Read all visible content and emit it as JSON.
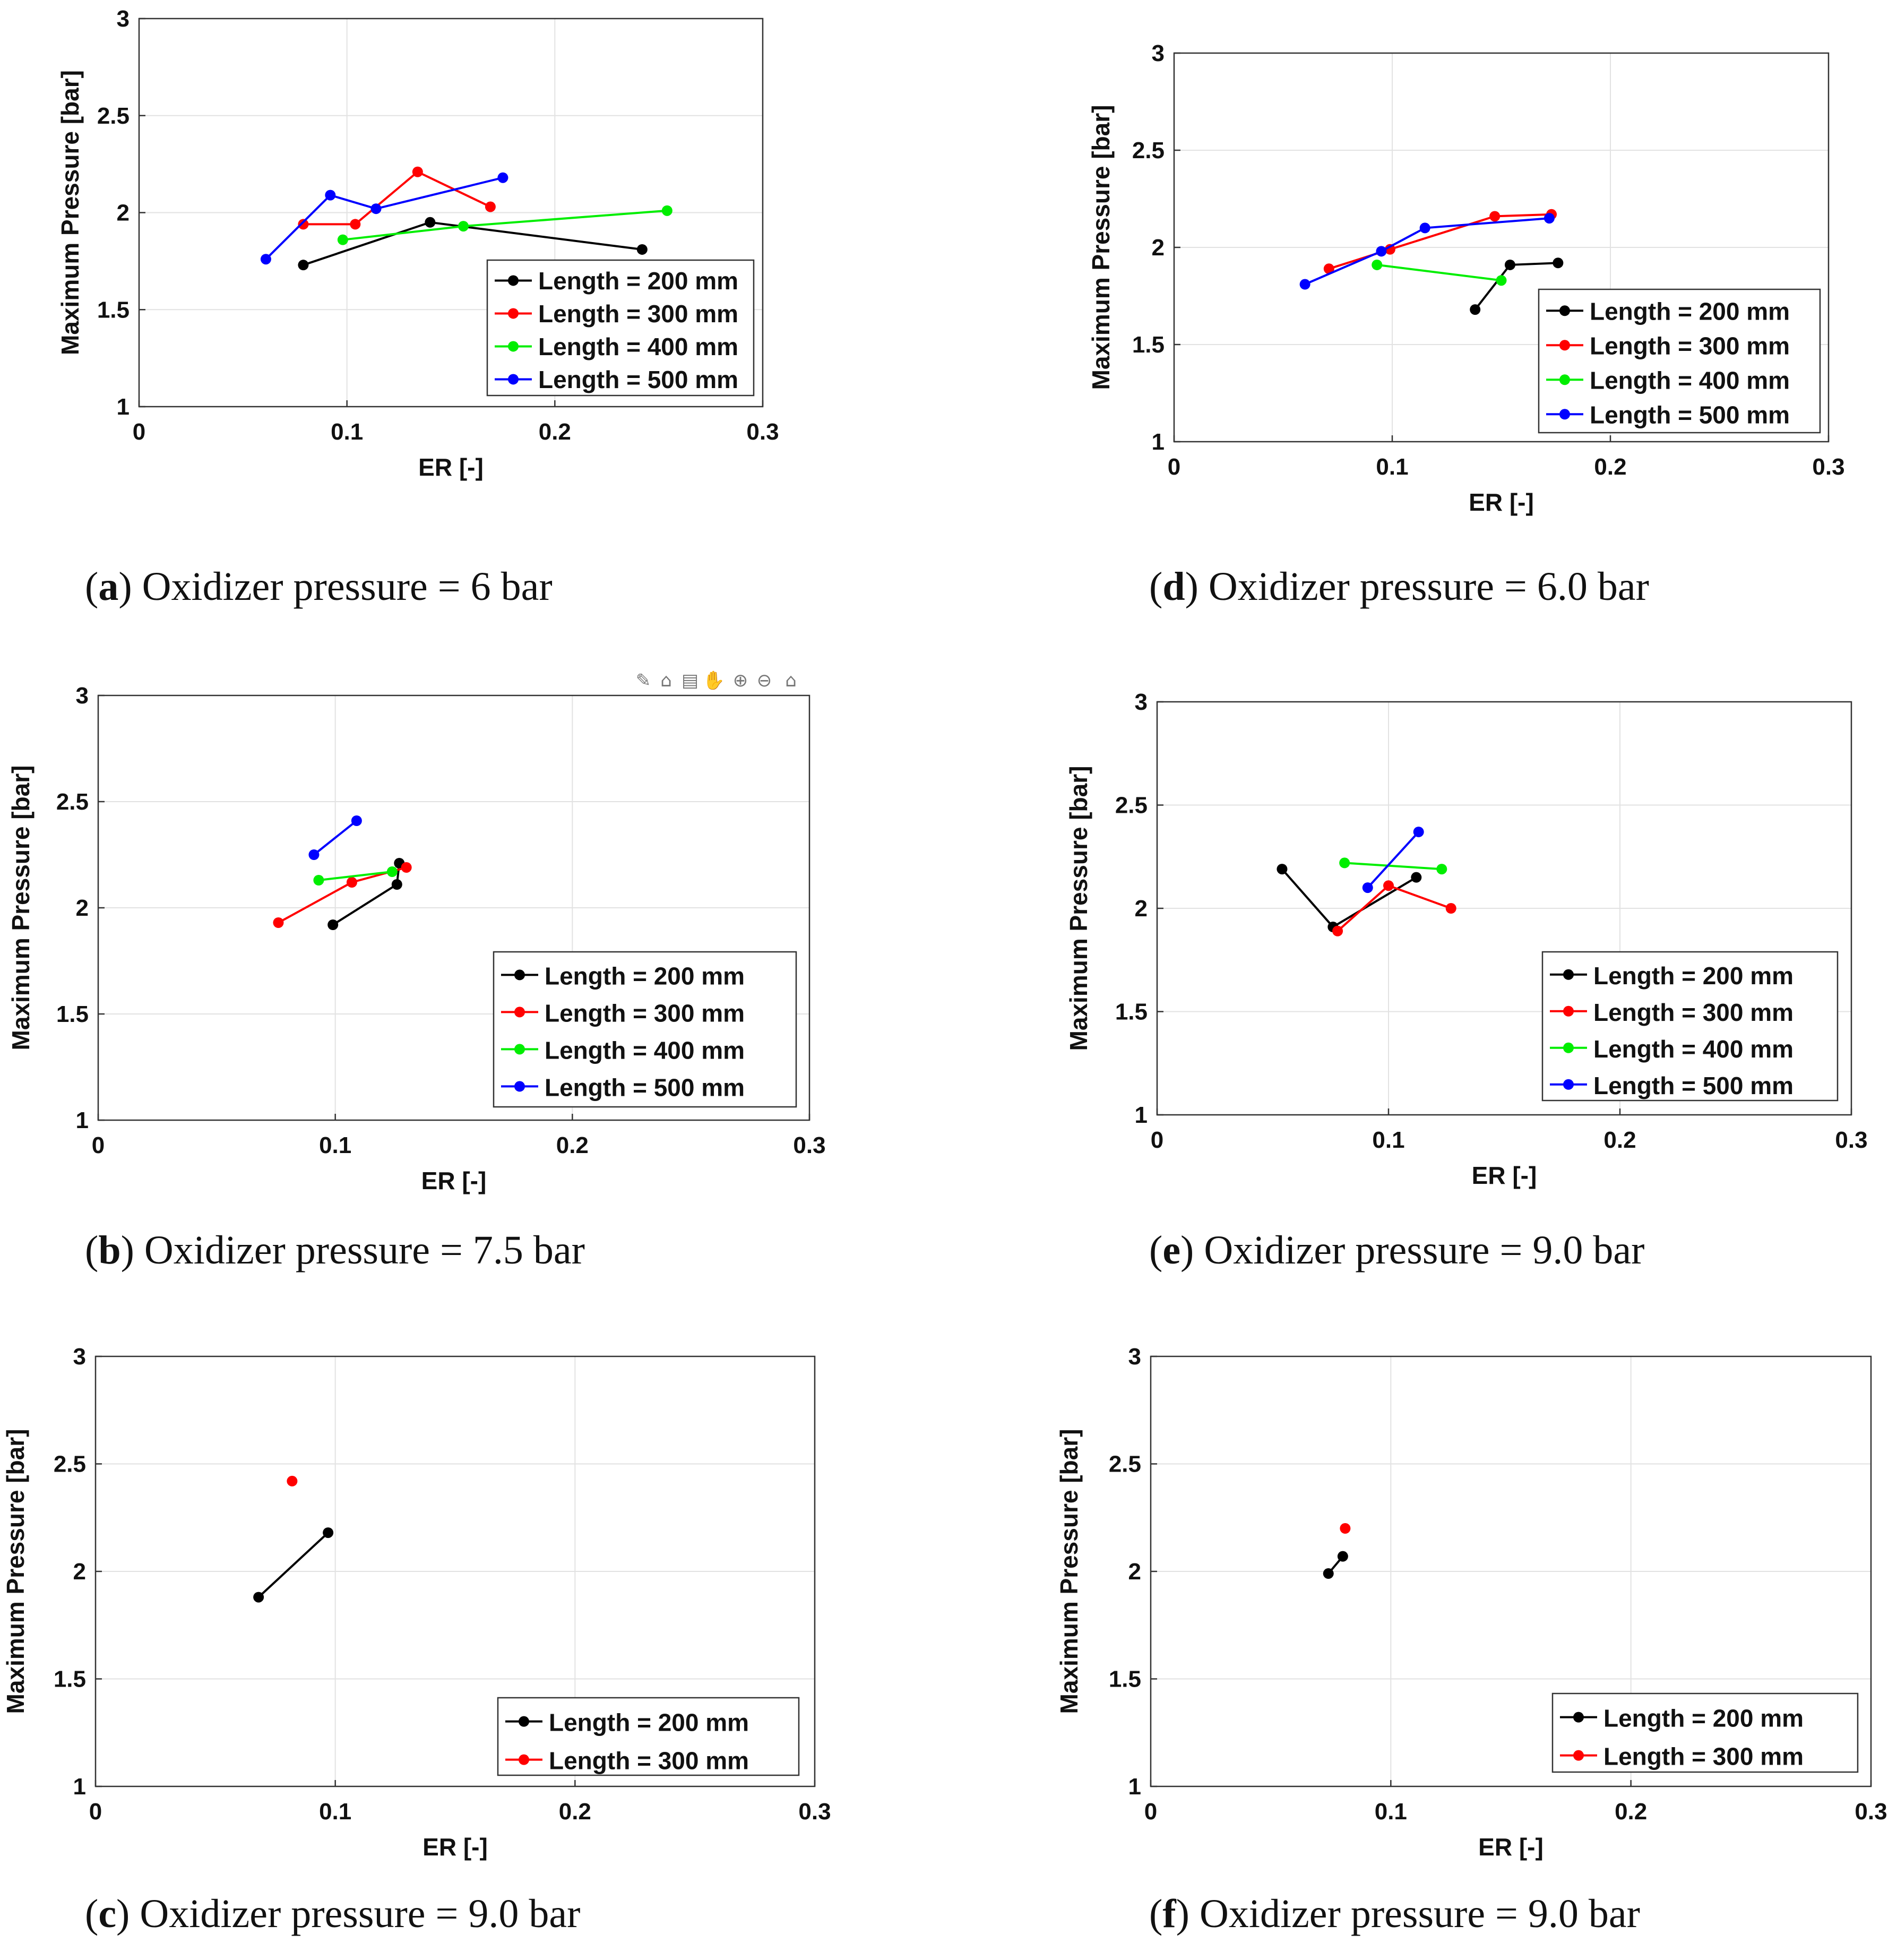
{
  "figure": {
    "toolbar_icons": [
      "brush-icon",
      "insert-legend-icon",
      "data-cursor-icon",
      "pan-hand-icon",
      "zoom-in-icon",
      "zoom-out-icon",
      "home-icon"
    ]
  },
  "chart_data": [
    {
      "id": "a",
      "type": "line",
      "caption_letter": "a",
      "caption_text": " Oxidizer pressure = 6 bar",
      "xlabel": "ER [-]",
      "ylabel": "Maximum Pressure [bar]",
      "xlim": [
        0,
        0.3
      ],
      "ylim": [
        1,
        3
      ],
      "xticks": [
        "0",
        "0.1",
        "0.2",
        "0.3"
      ],
      "yticks": [
        "1",
        "1.5",
        "2",
        "2.5",
        "3"
      ],
      "grid": true,
      "legend_placement": "bottom-right",
      "series": [
        {
          "name": "Length = 200 mm",
          "color": "#000000",
          "points": [
            [
              0.079,
              1.73
            ],
            [
              0.14,
              1.95
            ],
            [
              0.242,
              1.81
            ]
          ]
        },
        {
          "name": "Length = 300 mm",
          "color": "#ff0000",
          "points": [
            [
              0.079,
              1.94
            ],
            [
              0.104,
              1.94
            ],
            [
              0.134,
              2.21
            ],
            [
              0.169,
              2.03
            ]
          ]
        },
        {
          "name": "Length = 400 mm",
          "color": "#00ee00",
          "points": [
            [
              0.098,
              1.86
            ],
            [
              0.156,
              1.93
            ],
            [
              0.254,
              2.01
            ]
          ]
        },
        {
          "name": "Length = 500 mm",
          "color": "#0000ff",
          "points": [
            [
              0.061,
              1.76
            ],
            [
              0.092,
              2.09
            ],
            [
              0.114,
              2.02
            ],
            [
              0.175,
              2.18
            ]
          ]
        }
      ]
    },
    {
      "id": "b",
      "type": "line",
      "caption_letter": "b",
      "caption_text": " Oxidizer pressure = 7.5 bar",
      "xlabel": "ER [-]",
      "ylabel": "Maximum Pressure [bar]",
      "xlim": [
        0,
        0.3
      ],
      "ylim": [
        1,
        3
      ],
      "xticks": [
        "0",
        "0.1",
        "0.2",
        "0.3"
      ],
      "yticks": [
        "1",
        "1.5",
        "2",
        "2.5",
        "3"
      ],
      "grid": true,
      "legend_placement": "bottom-right",
      "series": [
        {
          "name": "Length = 200 mm",
          "color": "#000000",
          "points": [
            [
              0.099,
              1.92
            ],
            [
              0.126,
              2.11
            ],
            [
              0.127,
              2.21
            ]
          ]
        },
        {
          "name": "Length = 300 mm",
          "color": "#ff0000",
          "points": [
            [
              0.076,
              1.93
            ],
            [
              0.107,
              2.12
            ],
            [
              0.13,
              2.19
            ]
          ]
        },
        {
          "name": "Length = 400 mm",
          "color": "#00ee00",
          "points": [
            [
              0.093,
              2.13
            ],
            [
              0.124,
              2.17
            ]
          ]
        },
        {
          "name": "Length = 500 mm",
          "color": "#0000ff",
          "points": [
            [
              0.091,
              2.25
            ],
            [
              0.109,
              2.41
            ]
          ]
        }
      ]
    },
    {
      "id": "c",
      "type": "line",
      "caption_letter": "c",
      "caption_text": " Oxidizer pressure = 9.0 bar",
      "xlabel": "ER [-]",
      "ylabel": "Maximum Pressure [bar]",
      "xlim": [
        0,
        0.3
      ],
      "ylim": [
        1,
        3
      ],
      "xticks": [
        "0",
        "0.1",
        "0.2",
        "0.3"
      ],
      "yticks": [
        "1",
        "1.5",
        "2",
        "2.5",
        "3"
      ],
      "grid": true,
      "legend_placement": "bottom-right",
      "series": [
        {
          "name": "Length = 200 mm",
          "color": "#000000",
          "points": [
            [
              0.068,
              1.88
            ],
            [
              0.097,
              2.18
            ]
          ]
        },
        {
          "name": "Length = 300 mm",
          "color": "#ff0000",
          "points": [
            [
              0.082,
              2.42
            ]
          ]
        }
      ]
    },
    {
      "id": "d",
      "type": "line",
      "caption_letter": "d",
      "caption_text": " Oxidizer pressure = 6.0 bar",
      "xlabel": "ER [-]",
      "ylabel": "Maximum Pressure [bar]",
      "xlim": [
        0,
        0.3
      ],
      "ylim": [
        1,
        3
      ],
      "xticks": [
        "0",
        "0.1",
        "0.2",
        "0.3"
      ],
      "yticks": [
        "1",
        "1.5",
        "2",
        "2.5",
        "3"
      ],
      "grid": true,
      "legend_placement": "bottom-right",
      "series": [
        {
          "name": "Length = 200 mm",
          "color": "#000000",
          "points": [
            [
              0.138,
              1.68
            ],
            [
              0.154,
              1.91
            ],
            [
              0.176,
              1.92
            ]
          ]
        },
        {
          "name": "Length = 300 mm",
          "color": "#ff0000",
          "points": [
            [
              0.071,
              1.89
            ],
            [
              0.099,
              1.99
            ],
            [
              0.147,
              2.16
            ],
            [
              0.173,
              2.17
            ]
          ]
        },
        {
          "name": "Length = 400 mm",
          "color": "#00ee00",
          "points": [
            [
              0.093,
              1.91
            ],
            [
              0.15,
              1.83
            ]
          ]
        },
        {
          "name": "Length = 500 mm",
          "color": "#0000ff",
          "points": [
            [
              0.06,
              1.81
            ],
            [
              0.095,
              1.98
            ],
            [
              0.115,
              2.1
            ],
            [
              0.172,
              2.15
            ]
          ]
        }
      ]
    },
    {
      "id": "e",
      "type": "line",
      "caption_letter": "e",
      "caption_text": " Oxidizer pressure = 9.0 bar",
      "xlabel": "ER [-]",
      "ylabel": "Maximum Pressure [bar]",
      "xlim": [
        0,
        0.3
      ],
      "ylim": [
        1,
        3
      ],
      "xticks": [
        "0",
        "0.1",
        "0.2",
        "0.3"
      ],
      "yticks": [
        "1",
        "1.5",
        "2",
        "2.5",
        "3"
      ],
      "grid": true,
      "legend_placement": "bottom-right",
      "series": [
        {
          "name": "Length = 200 mm",
          "color": "#000000",
          "points": [
            [
              0.054,
              2.19
            ],
            [
              0.076,
              1.91
            ],
            [
              0.112,
              2.15
            ]
          ]
        },
        {
          "name": "Length = 300 mm",
          "color": "#ff0000",
          "points": [
            [
              0.078,
              1.89
            ],
            [
              0.1,
              2.11
            ],
            [
              0.127,
              2.0
            ]
          ]
        },
        {
          "name": "Length = 400 mm",
          "color": "#00ee00",
          "points": [
            [
              0.081,
              2.22
            ],
            [
              0.123,
              2.19
            ]
          ]
        },
        {
          "name": "Length = 500 mm",
          "color": "#0000ff",
          "points": [
            [
              0.091,
              2.1
            ],
            [
              0.113,
              2.37
            ]
          ]
        }
      ]
    },
    {
      "id": "f",
      "type": "line",
      "caption_letter": "f",
      "caption_text": " Oxidizer pressure = 9.0 bar",
      "xlabel": "ER [-]",
      "ylabel": "Maximum Pressure [bar]",
      "xlim": [
        0,
        0.3
      ],
      "ylim": [
        1,
        3
      ],
      "xticks": [
        "0",
        "0.1",
        "0.2",
        "0.3"
      ],
      "yticks": [
        "1",
        "1.5",
        "2",
        "2.5",
        "3"
      ],
      "grid": true,
      "legend_placement": "bottom-right",
      "series": [
        {
          "name": "Length = 200 mm",
          "color": "#000000",
          "points": [
            [
              0.074,
              1.99
            ],
            [
              0.08,
              2.07
            ]
          ]
        },
        {
          "name": "Length = 300 mm",
          "color": "#ff0000",
          "points": [
            [
              0.081,
              2.2
            ]
          ]
        }
      ]
    }
  ]
}
